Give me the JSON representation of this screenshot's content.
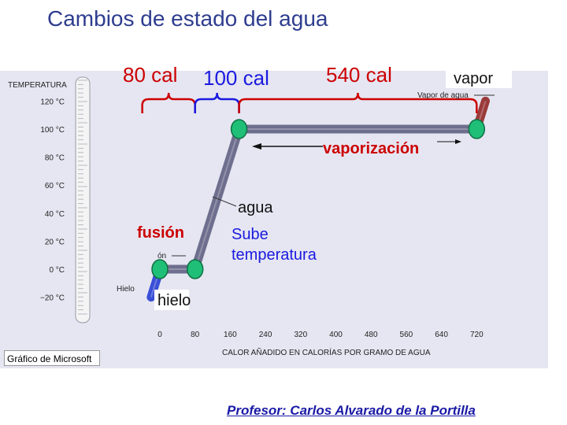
{
  "title": "Cambios de estado del agua",
  "credit": "Gráfico de Microsoft",
  "teacher": "Profesor: Carlos Alvarado de la Portilla",
  "colors": {
    "ice": "#3a4fd6",
    "water": "#6e6e8e",
    "vapor": "#9a3a3a",
    "nodes": "#1fbf77",
    "red": "#cc0000",
    "blue": "#1a1ae0",
    "panel": "#e6e6f2"
  },
  "chart_data": {
    "type": "line",
    "ylabel": "TEMPERATURA",
    "xlabel": "CALOR AÑADIDO EN CALORÍAS POR GRAMO DE AGUA",
    "x_ticks": [
      "0",
      "80",
      "160",
      "240",
      "320",
      "400",
      "480",
      "560",
      "640",
      "720"
    ],
    "y_ticks": [
      "120 °C",
      "100 °C",
      "80 °C",
      "60 °C",
      "40 °C",
      "20 °C",
      "0 °C",
      "−20 °C"
    ],
    "xlim": [
      0,
      720
    ],
    "ylim": [
      -20,
      120
    ],
    "points": [
      {
        "x": -20,
        "y": -20
      },
      {
        "x": 0,
        "y": 0
      },
      {
        "x": 80,
        "y": 0
      },
      {
        "x": 180,
        "y": 100
      },
      {
        "x": 720,
        "y": 100
      },
      {
        "x": 740,
        "y": 120
      }
    ],
    "segments": [
      {
        "from": 0,
        "to": 1,
        "phase": "ice"
      },
      {
        "from": 1,
        "to": 2,
        "phase": "water"
      },
      {
        "from": 2,
        "to": 3,
        "phase": "water"
      },
      {
        "from": 3,
        "to": 4,
        "phase": "water"
      },
      {
        "from": 4,
        "to": 5,
        "phase": "vapor"
      }
    ],
    "nodes": [
      1,
      2,
      3,
      4
    ],
    "brackets": [
      {
        "label": "80 cal",
        "x0": -40,
        "x1": 80,
        "color": "red"
      },
      {
        "label": "100 cal",
        "x0": 80,
        "x1": 180,
        "color": "blue"
      },
      {
        "label": "540 cal",
        "x0": 180,
        "x1": 720,
        "color": "red"
      }
    ],
    "annotations": {
      "vapor": "vapor",
      "vapor_small": "Vapor de agua",
      "vaporizacion": "vaporización",
      "agua": "agua",
      "fusion": "fusión",
      "fusion_small": "ón",
      "sube_line1": "Sube",
      "sube_line2": "temperatura",
      "hielo": "hielo",
      "hielo_small": "Hielo"
    }
  }
}
